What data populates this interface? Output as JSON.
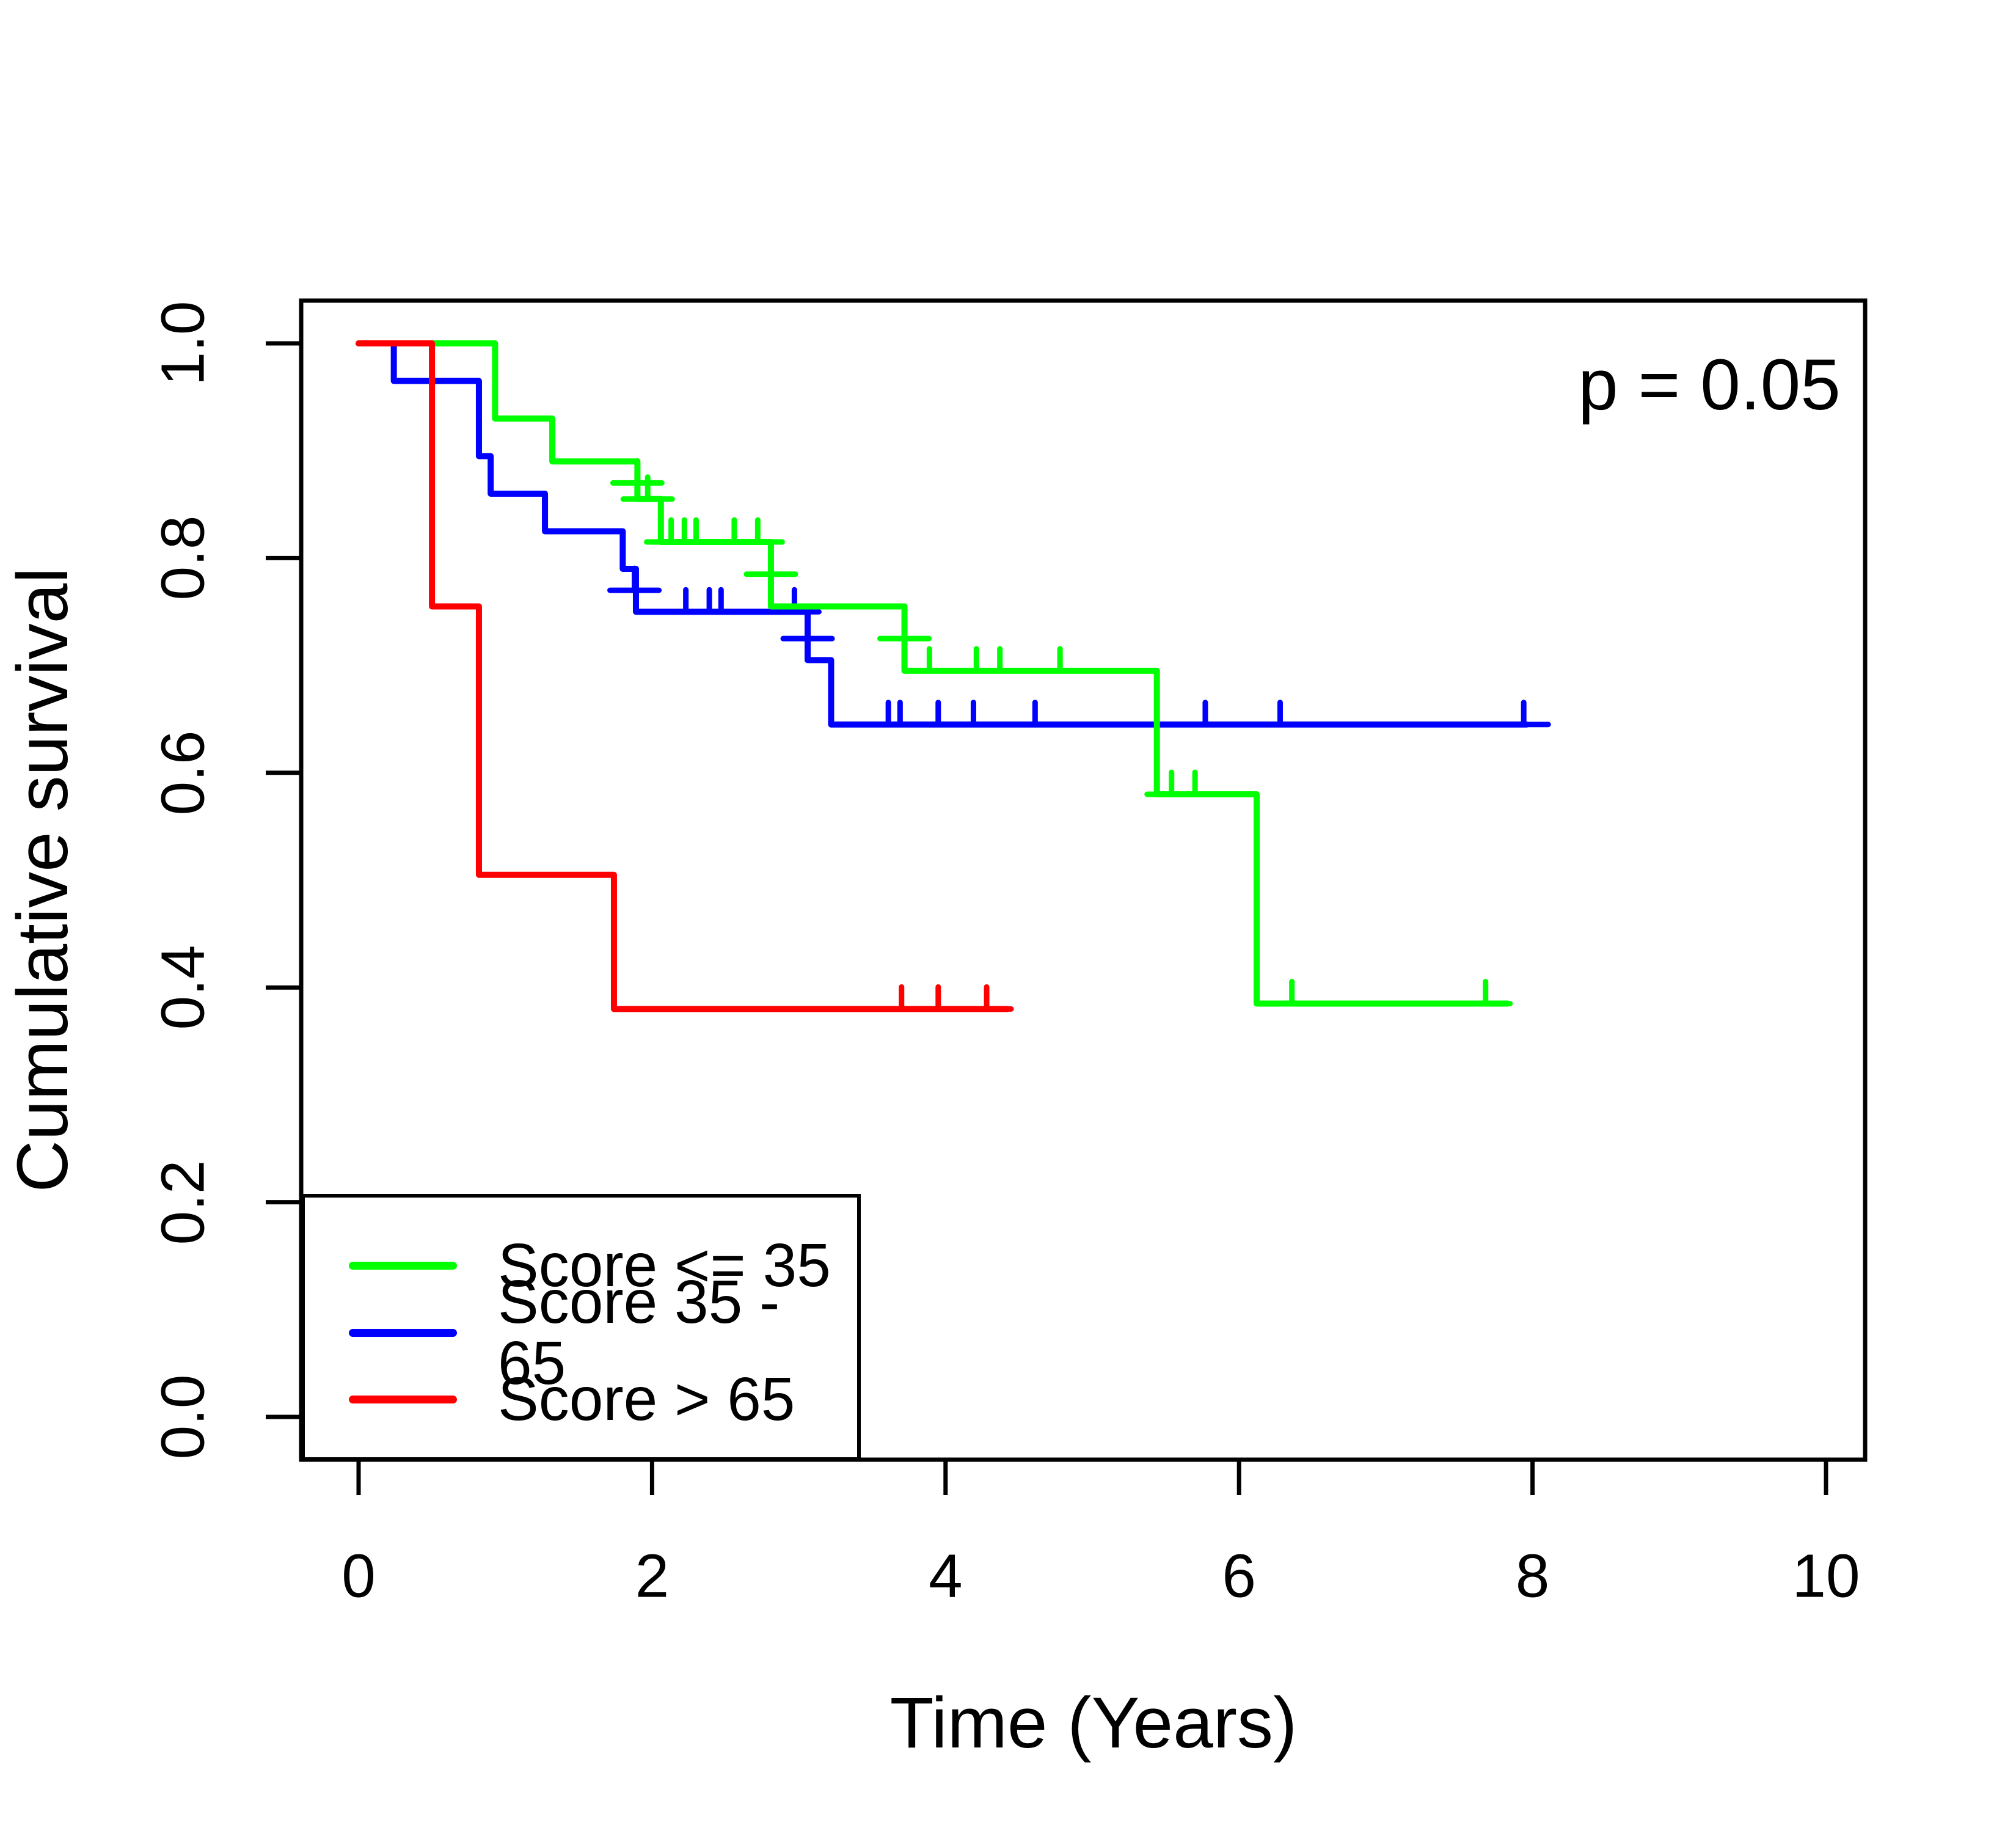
{
  "chart_data": {
    "type": "line",
    "variant": "kaplan-meier-step-curves",
    "title": "",
    "xlabel": "Time (Years)",
    "ylabel": "Cumulative survival",
    "annotation": "p = 0.05",
    "xlim": [
      0,
      10
    ],
    "ylim": [
      0,
      1
    ],
    "x_ticks": [
      0,
      2,
      4,
      6,
      8,
      10
    ],
    "x_tick_labels": [
      "0",
      "2",
      "4",
      "6",
      "8",
      "10"
    ],
    "y_ticks": [
      0,
      0.2,
      0.4,
      0.6,
      0.8,
      1.0
    ],
    "y_tick_labels": [
      "0.0",
      "0.2",
      "0.4",
      "0.6",
      "0.8",
      "1.0"
    ],
    "grid": false,
    "legend_position": "bottom-left",
    "axis_color": "#000000",
    "background": "#ffffff",
    "series": [
      {
        "name": "Score <= 35",
        "color": "#00ff00",
        "z": 2,
        "steps": [
          [
            0,
            1.0
          ],
          [
            0.93,
            0.93
          ],
          [
            1.32,
            0.89
          ],
          [
            1.9,
            0.855
          ],
          [
            2.06,
            0.815
          ],
          [
            2.81,
            0.755
          ],
          [
            3.72,
            0.695
          ],
          [
            5.44,
            0.58
          ],
          [
            6.12,
            0.385
          ]
        ],
        "end_time": 7.83,
        "censors": [
          [
            1.9,
            0.87
          ],
          [
            1.97,
            0.855
          ],
          [
            2.13,
            0.815
          ],
          [
            2.22,
            0.815
          ],
          [
            2.3,
            0.815
          ],
          [
            2.56,
            0.815
          ],
          [
            2.72,
            0.815
          ],
          [
            2.81,
            0.785
          ],
          [
            3.72,
            0.725
          ],
          [
            3.89,
            0.695
          ],
          [
            4.21,
            0.695
          ],
          [
            4.37,
            0.695
          ],
          [
            4.78,
            0.695
          ],
          [
            5.54,
            0.58
          ],
          [
            5.7,
            0.58
          ],
          [
            6.36,
            0.385
          ],
          [
            7.68,
            0.385
          ]
        ]
      },
      {
        "name": "Score 35 - 65",
        "color": "#0000ff",
        "z": 1,
        "steps": [
          [
            0,
            1.0
          ],
          [
            0.24,
            0.965
          ],
          [
            0.82,
            0.895
          ],
          [
            0.9,
            0.86
          ],
          [
            1.27,
            0.825
          ],
          [
            1.8,
            0.79
          ],
          [
            1.89,
            0.75
          ],
          [
            3.06,
            0.705
          ],
          [
            3.22,
            0.645
          ]
        ],
        "end_time": 7.96,
        "censors": [
          [
            1.88,
            0.77
          ],
          [
            2.23,
            0.75
          ],
          [
            2.39,
            0.75
          ],
          [
            2.47,
            0.75
          ],
          [
            2.97,
            0.75
          ],
          [
            3.06,
            0.725
          ],
          [
            3.61,
            0.645
          ],
          [
            3.69,
            0.645
          ],
          [
            3.95,
            0.645
          ],
          [
            4.19,
            0.645
          ],
          [
            4.61,
            0.645
          ],
          [
            5.77,
            0.645
          ],
          [
            6.28,
            0.645
          ],
          [
            7.94,
            0.645
          ]
        ]
      },
      {
        "name": "Score > 65",
        "color": "#ff0000",
        "z": 3,
        "steps": [
          [
            0,
            1.0
          ],
          [
            0.5,
            0.755
          ],
          [
            0.82,
            0.505
          ],
          [
            1.74,
            0.38
          ]
        ],
        "end_time": 4.42,
        "censors": [
          [
            3.7,
            0.38
          ],
          [
            3.95,
            0.38
          ],
          [
            4.28,
            0.38
          ]
        ]
      }
    ]
  }
}
